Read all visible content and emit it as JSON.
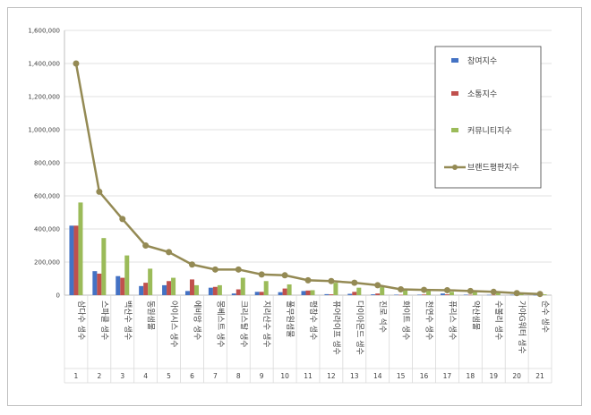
{
  "chart_data": {
    "type": "bar",
    "categories": [
      "삼다수 생수",
      "스파클 생수",
      "백산수 생수",
      "동원샘물",
      "아이시스 생수",
      "에비앙 생수",
      "몽베스트 생수",
      "크리스탈 생수",
      "지리산수 생수",
      "풀무원샘물",
      "평창수 생수",
      "퓨어라이프 생수",
      "다이아몬드 생수",
      "진로 석수",
      "화이트 생수",
      "천연수 생수",
      "퓨리스 생수",
      "약산샘물",
      "수볼리 생수",
      "가야G워터 생수",
      "순수 생수"
    ],
    "indices": [
      "1",
      "2",
      "3",
      "4",
      "5",
      "6",
      "7",
      "8",
      "9",
      "10",
      "11",
      "12",
      "13",
      "14",
      "15",
      "16",
      "17",
      "18",
      "19",
      "20",
      "21"
    ],
    "series": [
      {
        "name": "참여지수",
        "type": "bar",
        "color": "#4472c4",
        "values": [
          420000,
          145000,
          115000,
          55000,
          60000,
          25000,
          45000,
          10000,
          20000,
          18000,
          25000,
          6000,
          8000,
          5000,
          3000,
          3000,
          10000,
          3000,
          2000,
          2000,
          1000
        ]
      },
      {
        "name": "소통지수",
        "type": "bar",
        "color": "#c0504d",
        "values": [
          420000,
          130000,
          105000,
          75000,
          85000,
          95000,
          50000,
          35000,
          20000,
          40000,
          28000,
          5000,
          20000,
          10000,
          2000,
          4000,
          5000,
          2000,
          2000,
          1000,
          1000
        ]
      },
      {
        "name": "커뮤니티지수",
        "type": "bar",
        "color": "#9bbb59",
        "values": [
          560000,
          345000,
          240000,
          160000,
          105000,
          60000,
          60000,
          105000,
          85000,
          65000,
          30000,
          75000,
          45000,
          50000,
          30000,
          25000,
          20000,
          20000,
          15000,
          10000,
          5000
        ]
      },
      {
        "name": "브랜드평판지수",
        "type": "line",
        "color": "#948a54",
        "values": [
          1400000,
          625000,
          460000,
          300000,
          260000,
          185000,
          155000,
          155000,
          125000,
          120000,
          90000,
          85000,
          75000,
          60000,
          35000,
          32000,
          30000,
          25000,
          20000,
          12000,
          7000
        ]
      }
    ],
    "yticks": [
      "0",
      "200,000",
      "400,000",
      "600,000",
      "800,000",
      "1,000,000",
      "1,200,000",
      "1,400,000",
      "1,600,000"
    ],
    "ylim": [
      0,
      1600000
    ],
    "grid": true,
    "legend_position": "top-right"
  }
}
